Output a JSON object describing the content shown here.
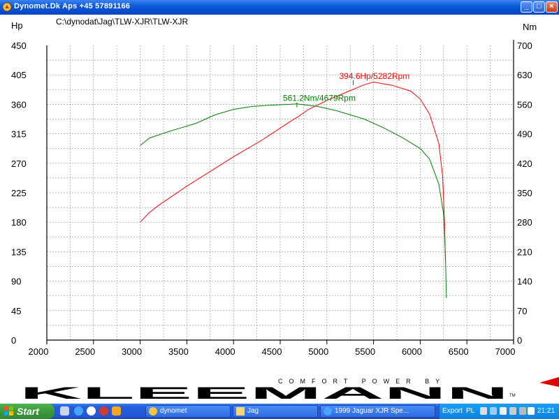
{
  "window": {
    "title": "Dynomet.Dk Aps +45 57891166",
    "buttons": {
      "minimize": "_",
      "maximize": "□",
      "close": "×"
    }
  },
  "chart_data": {
    "type": "line",
    "file_path": "C:\\dynodat\\Jag\\TLW-XJR\\TLW-XJR",
    "left_axis_label": "Hp",
    "right_axis_label": "Nm",
    "x_ticks": [
      "2000",
      "2500",
      "3000",
      "3500",
      "4000",
      "4500",
      "5000",
      "5500",
      "6000",
      "6500",
      "7000"
    ],
    "left_ticks": [
      "0",
      "45",
      "90",
      "135",
      "180",
      "225",
      "270",
      "315",
      "360",
      "405",
      "450"
    ],
    "right_ticks": [
      "0",
      "70",
      "140",
      "210",
      "280",
      "350",
      "420",
      "490",
      "560",
      "630",
      "700"
    ],
    "xlim": [
      2000,
      7000
    ],
    "ylim_left": [
      0,
      450
    ],
    "ylim_right": [
      0,
      700
    ],
    "grid": true,
    "series": [
      {
        "name": "Hp",
        "axis": "left",
        "color": "#ff0000",
        "points": [
          [
            3000,
            180
          ],
          [
            3100,
            195
          ],
          [
            3200,
            206
          ],
          [
            3500,
            235
          ],
          [
            3800,
            262
          ],
          [
            4000,
            280
          ],
          [
            4300,
            305
          ],
          [
            4600,
            333
          ],
          [
            4700,
            342
          ],
          [
            4800,
            352
          ],
          [
            5000,
            366
          ],
          [
            5200,
            378
          ],
          [
            5300,
            384
          ],
          [
            5400,
            390
          ],
          [
            5500,
            394
          ],
          [
            5700,
            389
          ],
          [
            5900,
            380
          ],
          [
            6000,
            368
          ],
          [
            6100,
            345
          ],
          [
            6200,
            300
          ],
          [
            6240,
            250
          ],
          [
            6260,
            180
          ],
          [
            6270,
            120
          ]
        ],
        "peak_label": "394.6Hp/5282Rpm",
        "peak": [
          5282,
          394.6
        ]
      },
      {
        "name": "Nm",
        "axis": "right",
        "color": "#008000",
        "points": [
          [
            3000,
            462
          ],
          [
            3100,
            480
          ],
          [
            3300,
            495
          ],
          [
            3600,
            515
          ],
          [
            3800,
            535
          ],
          [
            4000,
            548
          ],
          [
            4200,
            555
          ],
          [
            4400,
            558
          ],
          [
            4600,
            560
          ],
          [
            4679,
            561.2
          ],
          [
            4900,
            555
          ],
          [
            5100,
            545
          ],
          [
            5400,
            525
          ],
          [
            5600,
            505
          ],
          [
            5800,
            482
          ],
          [
            6000,
            455
          ],
          [
            6100,
            430
          ],
          [
            6200,
            370
          ],
          [
            6250,
            300
          ],
          [
            6270,
            200
          ],
          [
            6280,
            100
          ]
        ],
        "peak_label": "561.2Nm/4679Rpm",
        "peak": [
          4679,
          561.2
        ]
      }
    ]
  },
  "logo": {
    "main": "KLEEMANN",
    "sub": "COMFORT POWER BY",
    "tm": "TM"
  },
  "taskbar": {
    "start": "Start",
    "tasks": [
      {
        "label": "dynomet"
      },
      {
        "label": "Jag"
      },
      {
        "label": "1999 Jaguar XJR Spe..."
      }
    ],
    "tray_export": "Export",
    "tray_lang": "PL",
    "clock": "21:21"
  },
  "colors": {
    "titlebar": "#0a58d6",
    "grid": "#9a9a9a",
    "hp_line": "#ff0000",
    "nm_line": "#008000",
    "taskbar": "#245edb",
    "start": "#3a9a3c"
  }
}
